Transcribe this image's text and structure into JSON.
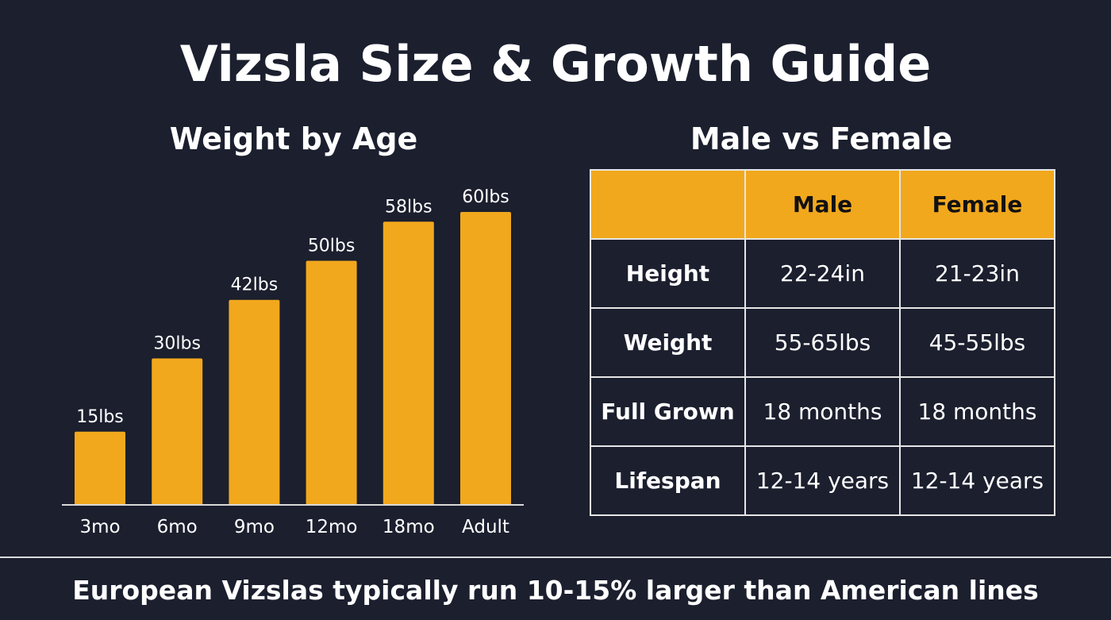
{
  "page": {
    "title": "Vizsla Size & Growth Guide",
    "footer_note": "European Vizslas typically run 10-15% larger than American lines"
  },
  "colors": {
    "background": "#1b1f2e",
    "bar": "#f2a81d",
    "text": "#ffffff",
    "table_header_text": "#111111",
    "rule": "#d9d9d9"
  },
  "chart_data": {
    "type": "bar",
    "title": "Weight by Age",
    "categories": [
      "3mo",
      "6mo",
      "9mo",
      "12mo",
      "18mo",
      "Adult"
    ],
    "values": [
      15,
      30,
      42,
      50,
      58,
      60
    ],
    "value_labels": [
      "15lbs",
      "30lbs",
      "42lbs",
      "50lbs",
      "58lbs",
      "60lbs"
    ],
    "ylim": [
      0,
      60
    ],
    "grid": false,
    "legend": "none"
  },
  "comparison_table": {
    "title": "Male vs Female",
    "columns": [
      "",
      "Male",
      "Female"
    ],
    "rows": [
      {
        "label": "Height",
        "male": "22-24in",
        "female": "21-23in"
      },
      {
        "label": "Weight",
        "male": "55-65lbs",
        "female": "45-55lbs"
      },
      {
        "label": "Full Grown",
        "male": "18 months",
        "female": "18 months"
      },
      {
        "label": "Lifespan",
        "male": "12-14 years",
        "female": "12-14 years"
      }
    ]
  }
}
